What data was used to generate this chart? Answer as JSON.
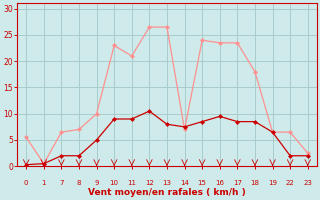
{
  "x_idx": [
    0,
    1,
    2,
    3,
    4,
    5,
    6,
    7,
    8,
    9,
    10,
    11,
    12,
    13,
    14,
    15,
    16
  ],
  "vent_moyen": [
    0.3,
    0.5,
    2.0,
    2.0,
    5.0,
    9.0,
    9.0,
    10.5,
    8.0,
    7.5,
    8.5,
    9.5,
    8.5,
    8.5,
    6.5,
    2.0,
    2.0
  ],
  "rafales": [
    5.5,
    0.5,
    6.5,
    7.0,
    10.0,
    23.0,
    21.0,
    26.5,
    26.5,
    7.0,
    24.0,
    23.5,
    23.5,
    18.0,
    6.5,
    6.5,
    2.5
  ],
  "tick_labels": [
    "0",
    "1",
    "7",
    "8",
    "9",
    "10",
    "11",
    "12",
    "13",
    "14",
    "15",
    "16",
    "17",
    "18",
    "19",
    "22",
    "23"
  ],
  "ylabel_ticks": [
    0,
    5,
    10,
    15,
    20,
    25,
    30
  ],
  "xlabel": "Vent moyen/en rafales ( km/h )",
  "bg_color": "#ceeaea",
  "grid_color": "#a8cccc",
  "line_color_moyen": "#cc0000",
  "line_color_rafales": "#ff9090",
  "ylim": [
    0,
    31
  ],
  "xlim": [
    -0.5,
    16.5
  ]
}
